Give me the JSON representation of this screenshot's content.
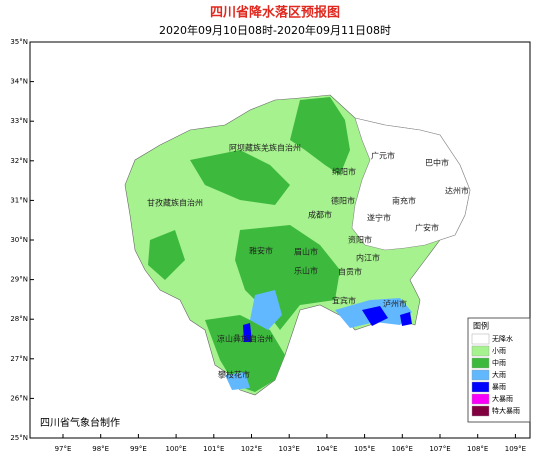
{
  "header": {
    "title": "四川省降水落区预报图",
    "subtitle": "2020年09月10日08时-2020年09月11日08时"
  },
  "axes": {
    "lat_labels": [
      "35°N",
      "34°N",
      "33°N",
      "32°N",
      "31°N",
      "30°N",
      "29°N",
      "28°N",
      "27°N",
      "26°N",
      "25°N"
    ],
    "lon_labels": [
      "97°E",
      "98°E",
      "99°E",
      "100°E",
      "101°E",
      "102°E",
      "103°E",
      "104°E",
      "105°E",
      "106°E",
      "107°E",
      "108°E",
      "109°E"
    ]
  },
  "regions": [
    "阿坝藏族羌族自治州",
    "广元市",
    "巴中市",
    "绵阳市",
    "达州市",
    "甘孜藏族自治州",
    "德阳市",
    "南充市",
    "成都市",
    "遂宁市",
    "广安市",
    "资阳市",
    "雅安市",
    "眉山市",
    "内江市",
    "乐山市",
    "自贡市",
    "宜宾市",
    "泸州市",
    "凉山彝族自治州",
    "攀枝花市"
  ],
  "legend": {
    "title": "图例",
    "items": [
      {
        "name": "无降水",
        "color": "#ffffff"
      },
      {
        "name": "小雨",
        "color": "#a6f28f"
      },
      {
        "name": "中雨",
        "color": "#3dba3d"
      },
      {
        "name": "大雨",
        "color": "#61b8ff"
      },
      {
        "name": "暴雨",
        "color": "#0000fe"
      },
      {
        "name": "大暴雨",
        "color": "#fa00fa"
      },
      {
        "name": "特大暴雨",
        "color": "#800040"
      }
    ]
  },
  "credit": "四川省气象台制作"
}
